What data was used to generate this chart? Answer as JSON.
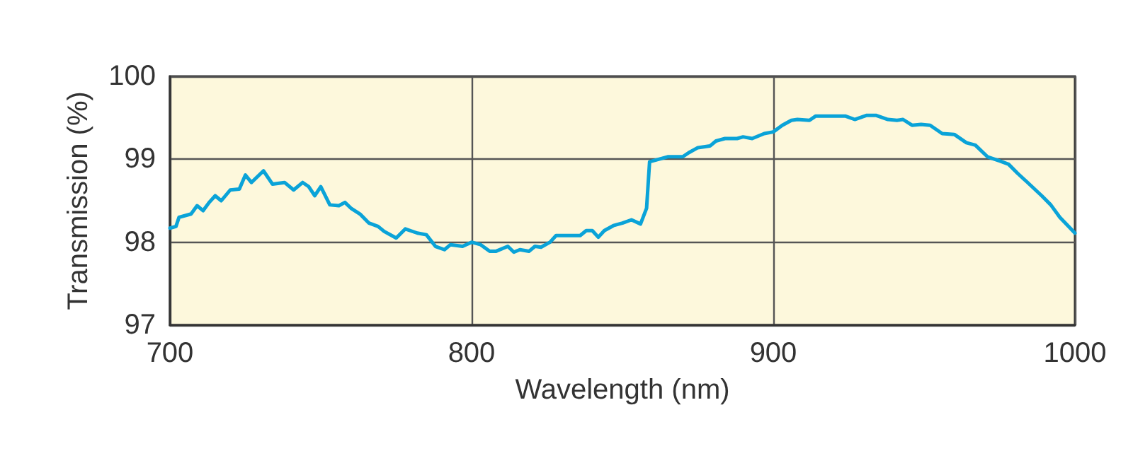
{
  "chart_data": {
    "type": "line",
    "xlabel": "Wavelength (nm)",
    "ylabel": "Transmission (%)",
    "xlim": [
      700,
      1000
    ],
    "xticks": [
      700,
      800,
      900,
      1000
    ],
    "ylim": [
      97,
      100
    ],
    "yticks": [
      97,
      98,
      99,
      100
    ],
    "grid": true,
    "marker": "none",
    "line_style": "solid",
    "series": [
      {
        "color": "#0aa3d8",
        "x": [
          700,
          702,
          703,
          707,
          709,
          711,
          713,
          715,
          717,
          720,
          723,
          725,
          727,
          731,
          734,
          738,
          741,
          744,
          746,
          748,
          750,
          753,
          756,
          758,
          760,
          763,
          766,
          769,
          771,
          775,
          778,
          782,
          785,
          788,
          791,
          793,
          797,
          800,
          803,
          806,
          808,
          812,
          814,
          816,
          819,
          821,
          823,
          826,
          828,
          836,
          838,
          840,
          842,
          844,
          847,
          850,
          853,
          856,
          858,
          859,
          862,
          865,
          870,
          872,
          875,
          879,
          881,
          884,
          888,
          890,
          893,
          897,
          900,
          903,
          906,
          908,
          912,
          914,
          924,
          927,
          931,
          934,
          938,
          941,
          943,
          946,
          949,
          952,
          956,
          960,
          964,
          967,
          971,
          975,
          978,
          981,
          984,
          989,
          992,
          995,
          1000
        ],
        "values": [
          98.17,
          98.19,
          98.3,
          98.34,
          98.44,
          98.38,
          98.48,
          98.56,
          98.5,
          98.63,
          98.64,
          98.81,
          98.72,
          98.86,
          98.7,
          98.72,
          98.63,
          98.72,
          98.67,
          98.56,
          98.67,
          98.45,
          98.44,
          98.48,
          98.41,
          98.34,
          98.23,
          98.19,
          98.13,
          98.05,
          98.16,
          98.11,
          98.09,
          97.95,
          97.91,
          97.97,
          97.95,
          98.0,
          97.97,
          97.89,
          97.89,
          97.95,
          97.88,
          97.91,
          97.89,
          97.95,
          97.94,
          98.0,
          98.08,
          98.08,
          98.14,
          98.14,
          98.06,
          98.14,
          98.2,
          98.23,
          98.27,
          98.22,
          98.41,
          98.97,
          99.0,
          99.03,
          99.03,
          99.08,
          99.14,
          99.16,
          99.22,
          99.25,
          99.25,
          99.27,
          99.25,
          99.31,
          99.33,
          99.41,
          99.47,
          99.48,
          99.47,
          99.52,
          99.52,
          99.48,
          99.53,
          99.53,
          99.48,
          99.47,
          99.48,
          99.41,
          99.42,
          99.41,
          99.31,
          99.3,
          99.2,
          99.17,
          99.03,
          98.98,
          98.94,
          98.83,
          98.73,
          98.56,
          98.45,
          98.3,
          98.11
        ]
      }
    ]
  }
}
